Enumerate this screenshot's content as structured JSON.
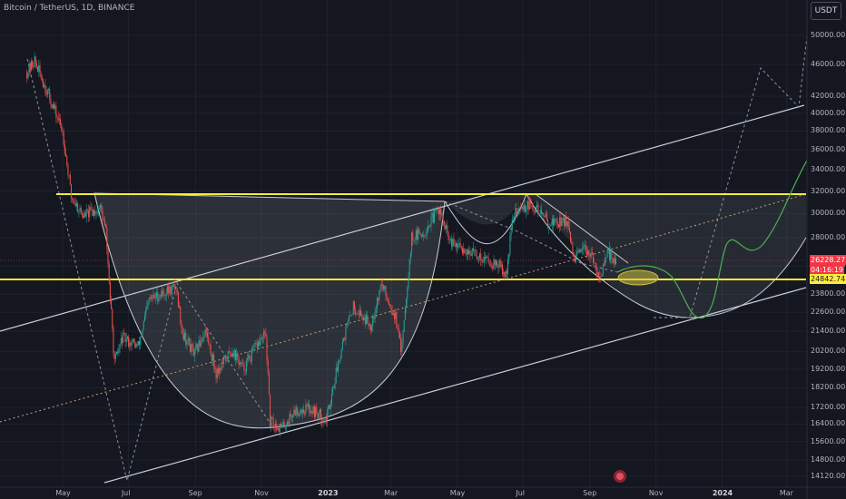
{
  "header": {
    "symbol_title": "Bitcoin / TetherUS, 1D, BINANCE",
    "currency_button": "USDT"
  },
  "chart_data": {
    "type": "candlestick",
    "symbol": "Bitcoin / TetherUS",
    "interval": "1D",
    "exchange": "BINANCE",
    "y_scale": "log",
    "y_ticks": [
      50000,
      46000,
      42000,
      40000,
      38000,
      36000,
      34000,
      32000,
      30000,
      28000,
      25800,
      23800,
      22600,
      21400,
      20200,
      19200,
      18200,
      17200,
      16400,
      15600,
      14800,
      14120
    ],
    "y_tick_labels": [
      "50000.00",
      "46000.00",
      "42000.00",
      "40000.00",
      "38000.00",
      "36000.00",
      "34000.00",
      "32000.00",
      "30000.00",
      "28000.00",
      "25800.00",
      "23800.00",
      "22600.00",
      "21400.00",
      "20200.00",
      "19200.00",
      "18200.00",
      "17200.00",
      "16400.00",
      "15600.00",
      "14800.00",
      "14120.00"
    ],
    "x_ticks": [
      {
        "label": "May",
        "date": "2022-05-01",
        "bold": false
      },
      {
        "label": "Jul",
        "date": "2022-07-01",
        "bold": false
      },
      {
        "label": "Sep",
        "date": "2022-09-01",
        "bold": false
      },
      {
        "label": "Nov",
        "date": "2022-11-01",
        "bold": false
      },
      {
        "label": "2023",
        "date": "2023-01-01",
        "bold": true
      },
      {
        "label": "Mar",
        "date": "2023-03-01",
        "bold": false
      },
      {
        "label": "May",
        "date": "2023-05-01",
        "bold": false
      },
      {
        "label": "Jul",
        "date": "2023-07-01",
        "bold": false
      },
      {
        "label": "Sep",
        "date": "2023-09-01",
        "bold": false
      },
      {
        "label": "Nov",
        "date": "2023-11-01",
        "bold": false
      },
      {
        "label": "2024",
        "date": "2024-01-01",
        "bold": true
      },
      {
        "label": "Mar",
        "date": "2024-03-01",
        "bold": false
      }
    ],
    "price_path": [
      [
        "2022-03-29",
        45000
      ],
      [
        "2022-04-05",
        46500
      ],
      [
        "2022-04-20",
        41500
      ],
      [
        "2022-05-01",
        38000
      ],
      [
        "2022-05-09",
        31500
      ],
      [
        "2022-05-20",
        29800
      ],
      [
        "2022-06-05",
        30500
      ],
      [
        "2022-06-10",
        28500
      ],
      [
        "2022-06-18",
        19500
      ],
      [
        "2022-06-25",
        21000
      ],
      [
        "2022-07-10",
        20500
      ],
      [
        "2022-07-20",
        23400
      ],
      [
        "2022-07-30",
        23800
      ],
      [
        "2022-08-14",
        24300
      ],
      [
        "2022-08-20",
        21300
      ],
      [
        "2022-08-31",
        20000
      ],
      [
        "2022-09-10",
        21500
      ],
      [
        "2022-09-20",
        19000
      ],
      [
        "2022-10-05",
        20300
      ],
      [
        "2022-10-15",
        19200
      ],
      [
        "2022-10-28",
        20600
      ],
      [
        "2022-11-05",
        21200
      ],
      [
        "2022-11-09",
        16500
      ],
      [
        "2022-11-20",
        16200
      ],
      [
        "2022-12-01",
        17000
      ],
      [
        "2022-12-15",
        17200
      ],
      [
        "2022-12-31",
        16600
      ],
      [
        "2023-01-15",
        20800
      ],
      [
        "2023-01-25",
        23000
      ],
      [
        "2023-02-10",
        21800
      ],
      [
        "2023-02-20",
        24500
      ],
      [
        "2023-03-05",
        22300
      ],
      [
        "2023-03-10",
        20200
      ],
      [
        "2023-03-20",
        28000
      ],
      [
        "2023-03-31",
        28400
      ],
      [
        "2023-04-14",
        30400
      ],
      [
        "2023-04-25",
        27500
      ],
      [
        "2023-05-10",
        27000
      ],
      [
        "2023-05-25",
        26400
      ],
      [
        "2023-06-10",
        25800
      ],
      [
        "2023-06-15",
        25000
      ],
      [
        "2023-06-22",
        30000
      ],
      [
        "2023-07-05",
        30700
      ],
      [
        "2023-07-15",
        30300
      ],
      [
        "2023-07-25",
        29200
      ],
      [
        "2023-08-10",
        29400
      ],
      [
        "2023-08-17",
        26300
      ],
      [
        "2023-08-30",
        27200
      ],
      [
        "2023-09-05",
        25800
      ],
      [
        "2023-09-11",
        25100
      ],
      [
        "2023-09-18",
        26800
      ],
      [
        "2023-09-25",
        26228
      ]
    ],
    "last_price": {
      "value": 26228.27,
      "label": "26228.27",
      "countdown": "04:16:19",
      "color": "#f23645"
    },
    "support_level": {
      "value": 24842.74,
      "label": "24842.74",
      "color": "#ffeb3b"
    },
    "resistance_level": {
      "value": 31500,
      "color": "#ffeb3b"
    },
    "colors": {
      "up": "#26a69a",
      "down": "#ef5350",
      "projection": "#4caf50",
      "channel": "#d1d4dc",
      "background": "#141720"
    }
  }
}
